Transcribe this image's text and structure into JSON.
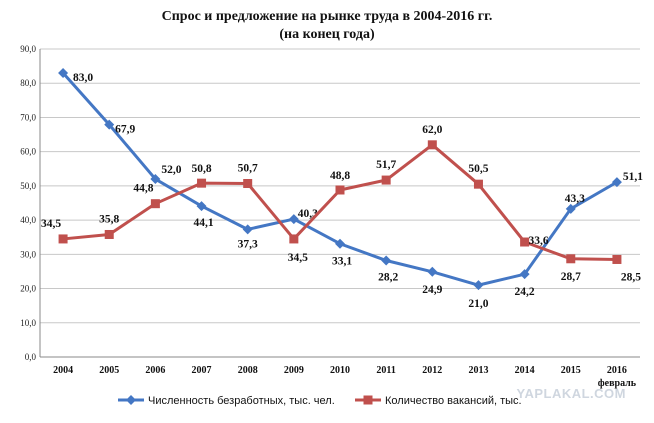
{
  "chart_data": {
    "type": "line",
    "title": "Спрос и предложение на рынке труда в 2004-2016 гг.",
    "subtitle": "(на конец года)",
    "categories": [
      "2004",
      "2005",
      "2006",
      "2007",
      "2008",
      "2009",
      "2010",
      "2011",
      "2012",
      "2013",
      "2014",
      "2015",
      "2016"
    ],
    "category_sublabel": "февраль",
    "ylim": [
      0,
      90
    ],
    "yticks": [
      "0,0",
      "10,0",
      "20,0",
      "30,0",
      "40,0",
      "50,0",
      "60,0",
      "70,0",
      "80,0",
      "90,0"
    ],
    "grid": "horizontal",
    "legend_position": "bottom",
    "series": [
      {
        "name": "Численность безработных, тыс. чел.",
        "color": "#4477c4",
        "marker": "diamond",
        "values": [
          83.0,
          67.9,
          52.0,
          44.1,
          37.3,
          40.3,
          33.1,
          28.2,
          24.9,
          21.0,
          24.2,
          43.3,
          51.1
        ],
        "labels": [
          "83,0",
          "67,9",
          "52,0",
          "44,1",
          "37,3",
          "40,3",
          "33,1",
          "28,2",
          "24,9",
          "21,0",
          "24,2",
          "43,3",
          "51,1"
        ]
      },
      {
        "name": "Количество вакансий, тыс.",
        "color": "#c0504d",
        "marker": "square",
        "values": [
          34.5,
          35.8,
          44.8,
          50.8,
          50.7,
          34.5,
          48.8,
          51.7,
          62.0,
          50.5,
          33.6,
          28.7,
          28.5
        ],
        "labels": [
          "34,5",
          "35,8",
          "44,8",
          "50,8",
          "50,7",
          "34,5",
          "48,8",
          "51,7",
          "62,0",
          "50,5",
          "33,6",
          "28,7",
          "28,5"
        ]
      }
    ]
  },
  "watermark": "YAPLAKAL.COM"
}
